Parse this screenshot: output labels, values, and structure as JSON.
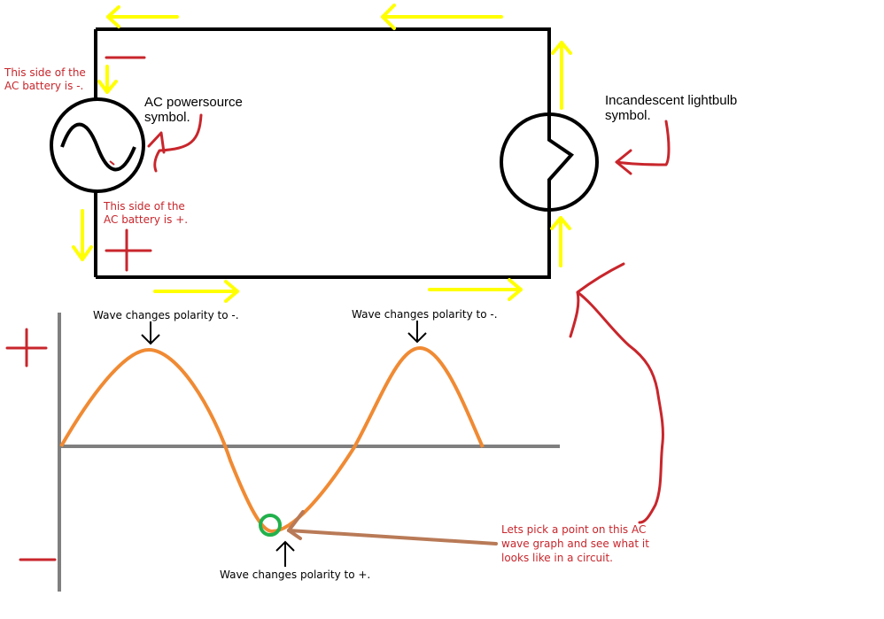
{
  "labels": {
    "ac_source": "AC powersource symbol.",
    "lightbulb": "Incandescent lightbulb symbol.",
    "negative_side": "This side of the AC battery is -.",
    "positive_side": "This side of the AC battery is +.",
    "wave_neg_1": "Wave changes polarity to -.",
    "wave_neg_2": "Wave changes polarity to -.",
    "wave_pos": "Wave changes polarity to +.",
    "pick_point": "Lets pick a point on this AC wave graph and see what it looks like in a circuit."
  },
  "symbols": {
    "plus": "+",
    "minus": "-"
  },
  "colors": {
    "wire": "#000000",
    "current_arrow": "#ffff00",
    "annotation": "#c8262c",
    "wave": "#f08a33",
    "axis": "#7f7f7f",
    "pointer": "#b97a57",
    "highlight": "#22b14c"
  },
  "icons": {
    "ac_source": "sine-wave-in-circle",
    "lightbulb": "circle-with-filament-notch"
  }
}
